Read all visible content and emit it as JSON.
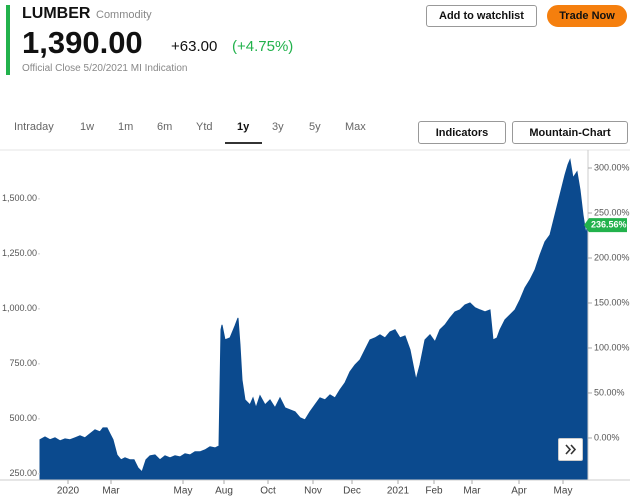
{
  "header": {
    "symbol": "LUMBER",
    "kind": "Commodity",
    "price": "1,390.00",
    "change": "+63.00",
    "change_pct": "(+4.75%)",
    "note": "Official Close 5/20/2021 MI Indication",
    "watch_button": "Add to watchlist",
    "trade_button": "Trade Now"
  },
  "toolbar": {
    "tabs": [
      "Intraday",
      "1w",
      "1m",
      "6m",
      "Ytd",
      "1y",
      "3y",
      "5y",
      "Max"
    ],
    "selected_tab": 5,
    "buttons": [
      "Indicators",
      "Mountain-Chart"
    ]
  },
  "chart_data": {
    "type": "area",
    "color": "#0b4a8e",
    "x": [
      0,
      5,
      10,
      15,
      20,
      25,
      30,
      35,
      40,
      45,
      50,
      55,
      60,
      63,
      67,
      70,
      73,
      77,
      81,
      85,
      90,
      94,
      98,
      102,
      106,
      110,
      115,
      120,
      125,
      130,
      135,
      140,
      145,
      150,
      155,
      160,
      165,
      170,
      175,
      179,
      181,
      182,
      185,
      190,
      195,
      198,
      200,
      202,
      205,
      210,
      213,
      216,
      220,
      225,
      230,
      235,
      240,
      245,
      250,
      255,
      260,
      265,
      270,
      275,
      280,
      285,
      290,
      295,
      300,
      305,
      310,
      315,
      320,
      325,
      330,
      335,
      340,
      345,
      350,
      355,
      360,
      365,
      370,
      373,
      376,
      380,
      385,
      390,
      395,
      400,
      405,
      410,
      415,
      420,
      425,
      430,
      435,
      440,
      445,
      450,
      453,
      457,
      460,
      465,
      470,
      475,
      480,
      485,
      490,
      495,
      500,
      505,
      510,
      515,
      520,
      525,
      528,
      530,
      533,
      537,
      540,
      543,
      546,
      548
    ],
    "values": [
      405,
      418,
      405,
      414,
      400,
      409,
      405,
      414,
      423,
      414,
      432,
      450,
      441,
      459,
      459,
      432,
      405,
      336,
      314,
      323,
      314,
      314,
      277,
      259,
      314,
      332,
      336,
      314,
      332,
      323,
      332,
      327,
      341,
      336,
      350,
      350,
      359,
      373,
      368,
      377,
      905,
      927,
      859,
      868,
      923,
      959,
      836,
      677,
      586,
      564,
      595,
      550,
      605,
      564,
      586,
      550,
      595,
      550,
      541,
      532,
      505,
      495,
      532,
      564,
      595,
      586,
      609,
      595,
      632,
      664,
      714,
      745,
      768,
      814,
      859,
      868,
      882,
      868,
      895,
      905,
      868,
      877,
      814,
      745,
      677,
      745,
      859,
      882,
      850,
      905,
      927,
      959,
      986,
      995,
      1018,
      1027,
      1005,
      995,
      986,
      995,
      859,
      868,
      905,
      950,
      973,
      995,
      1041,
      1095,
      1132,
      1177,
      1245,
      1305,
      1336,
      1427,
      1518,
      1609,
      1655,
      1677,
      1595,
      1623,
      1541,
      1427,
      1340,
      1390
    ],
    "xlim": [
      0,
      548
    ],
    "xticks": [
      {
        "value": 28,
        "label": "2020"
      },
      {
        "value": 71,
        "label": "Mar"
      },
      {
        "value": 143,
        "label": "May"
      },
      {
        "value": 184,
        "label": "Aug"
      },
      {
        "value": 228,
        "label": "Oct"
      },
      {
        "value": 273,
        "label": "Nov"
      },
      {
        "value": 312,
        "label": "Dec"
      },
      {
        "value": 358,
        "label": "2021"
      },
      {
        "value": 394,
        "label": "Feb"
      },
      {
        "value": 432,
        "label": "Mar"
      },
      {
        "value": 479,
        "label": "Apr"
      },
      {
        "value": 523,
        "label": "May"
      }
    ],
    "ylim": [
      222,
      1722
    ],
    "yticks": [
      {
        "value": 250,
        "label": "250.00"
      },
      {
        "value": 500,
        "label": "500.00"
      },
      {
        "value": 750,
        "label": "750.00"
      },
      {
        "value": 1000,
        "label": "1,000.00"
      },
      {
        "value": 1250,
        "label": "1,250.00"
      },
      {
        "value": 1500,
        "label": "1,500.00"
      }
    ],
    "y2lim": [
      -46.7,
      320
    ],
    "y2ticks": [
      {
        "value": 0,
        "label": "0.00%"
      },
      {
        "value": 50,
        "label": "50.00%"
      },
      {
        "value": 100,
        "label": "100.00%"
      },
      {
        "value": 150,
        "label": "150.00%"
      },
      {
        "value": 200,
        "label": "200.00%"
      },
      {
        "value": 250,
        "label": "250.00%"
      },
      {
        "value": 300,
        "label": "300.00%"
      }
    ],
    "current_marker": {
      "value": 236.56,
      "label": "236.56%",
      "color": "#22b24c"
    }
  }
}
